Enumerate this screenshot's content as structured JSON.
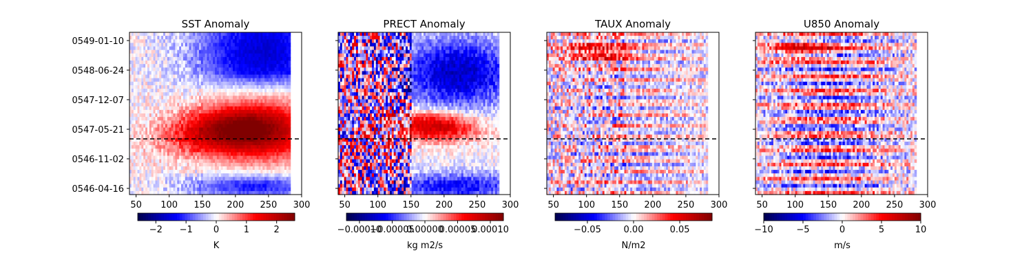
{
  "chart_data": [
    {
      "type": "heatmap",
      "title": "SST Anomaly",
      "xlabel": "",
      "ylabel": "",
      "xlim": [
        40,
        300
      ],
      "x_ticks": [
        "50",
        "100",
        "150",
        "200",
        "250",
        "300"
      ],
      "y_ticks": [
        "0549-01-10",
        "0548-06-24",
        "0547-12-07",
        "0547-05-21",
        "0546-11-02",
        "0546-04-16"
      ],
      "time_range": [
        "0546-03",
        "0549-02"
      ],
      "data_x_range": [
        40,
        283
      ],
      "reference_line": {
        "style": "dashed",
        "at_date": "0547-02"
      },
      "colormap": "seismic",
      "colorbar": {
        "label": "K",
        "range": [
          -2.6,
          2.6
        ],
        "ticks": [
          "−2",
          "−1",
          "0",
          "1",
          "2"
        ]
      }
    },
    {
      "type": "heatmap",
      "title": "PRECT Anomaly",
      "xlabel": "",
      "ylabel": "",
      "xlim": [
        40,
        300
      ],
      "x_ticks": [
        "50",
        "100",
        "150",
        "200",
        "250",
        "300"
      ],
      "y_ticks": [],
      "time_range": [
        "0546-03",
        "0549-02"
      ],
      "data_x_range": [
        40,
        283
      ],
      "reference_line": {
        "style": "dashed",
        "at_date": "0547-02"
      },
      "colormap": "seismic",
      "colorbar": {
        "label": "kg m2/s",
        "range": [
          -0.00012,
          0.00012
        ],
        "ticks": [
          "−0.00010",
          "−0.00005",
          "0.00000",
          "0.00005",
          "0.00010"
        ]
      }
    },
    {
      "type": "heatmap",
      "title": "TAUX Anomaly",
      "xlabel": "",
      "ylabel": "",
      "xlim": [
        40,
        300
      ],
      "x_ticks": [
        "50",
        "100",
        "150",
        "200",
        "250",
        "300"
      ],
      "y_ticks": [],
      "time_range": [
        "0546-03",
        "0549-02"
      ],
      "data_x_range": [
        40,
        283
      ],
      "reference_line": {
        "style": "dashed",
        "at_date": "0547-02"
      },
      "colormap": "seismic",
      "colorbar": {
        "label": "N/m2",
        "range": [
          -0.085,
          0.085
        ],
        "ticks": [
          "−0.05",
          "0.00",
          "0.05"
        ]
      }
    },
    {
      "type": "heatmap",
      "title": "U850 Anomaly",
      "xlabel": "",
      "ylabel": "",
      "xlim": [
        40,
        300
      ],
      "x_ticks": [
        "50",
        "100",
        "150",
        "200",
        "250",
        "300"
      ],
      "y_ticks": [],
      "time_range": [
        "0546-03",
        "0549-02"
      ],
      "data_x_range": [
        40,
        283
      ],
      "reference_line": {
        "style": "dashed",
        "at_date": "0547-02"
      },
      "colormap": "seismic",
      "colorbar": {
        "label": "m/s",
        "range": [
          -10,
          10
        ],
        "ticks": [
          "−10",
          "−5",
          "0",
          "5",
          "10"
        ]
      }
    }
  ]
}
